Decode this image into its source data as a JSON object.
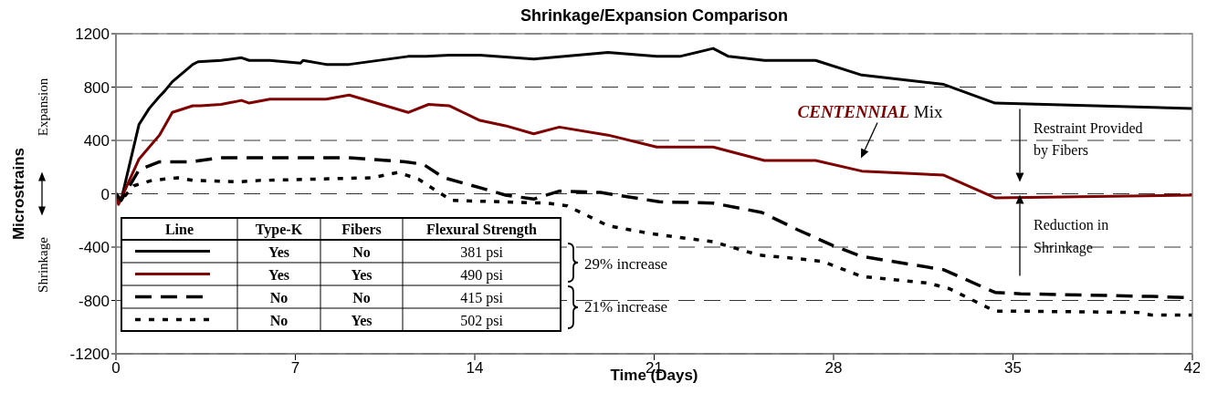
{
  "chart_data": {
    "type": "line",
    "title": "Shrinkage/Expansion Comparison",
    "xlabel": "Time (Days)",
    "ylabel": "Microstrains",
    "xlim": [
      0,
      42
    ],
    "xticks": [
      0,
      7,
      14,
      21,
      28,
      35,
      42
    ],
    "ylim": [
      -1200,
      1200
    ],
    "yticks": [
      -1200,
      -800,
      -400,
      0,
      400,
      800,
      1200
    ],
    "grid": "y",
    "series": [
      {
        "color": "#000000",
        "line_style": "solid",
        "x": [
          0,
          0.2,
          0.9,
          1.3,
          1.7,
          1.9,
          2.2,
          3,
          3.2,
          4.1,
          4.9,
          5.2,
          6,
          7.2,
          7.3,
          8.2,
          9.1,
          11.4,
          12.1,
          13,
          14.2,
          16.3,
          19.2,
          21.1,
          22,
          23.3,
          23.9,
          25.3,
          27.3,
          29.1,
          32.3,
          34.3,
          42
        ],
        "values": [
          0,
          -50,
          520,
          640,
          730,
          770,
          840,
          970,
          990,
          1000,
          1020,
          1000,
          1000,
          980,
          1000,
          970,
          970,
          1030,
          1030,
          1040,
          1040,
          1010,
          1060,
          1030,
          1030,
          1090,
          1030,
          1000,
          1000,
          890,
          820,
          680,
          640
        ]
      },
      {
        "color": "#7f0000",
        "line_style": "solid",
        "x": [
          0,
          0.1,
          0.9,
          1.7,
          2.2,
          3,
          3.3,
          4.1,
          4.9,
          5.2,
          6,
          8.2,
          9.1,
          11.4,
          12.2,
          13,
          14.2,
          15.2,
          16.3,
          17.3,
          19.2,
          21.1,
          23.3,
          25.3,
          27.3,
          29.1,
          32.3,
          34.3,
          42
        ],
        "values": [
          0,
          -80,
          260,
          440,
          610,
          660,
          660,
          670,
          700,
          680,
          710,
          710,
          740,
          610,
          670,
          660,
          550,
          510,
          450,
          500,
          440,
          350,
          350,
          250,
          250,
          170,
          140,
          -30,
          -10
        ]
      },
      {
        "color": "#000000",
        "line_style": "dashed",
        "x": [
          0,
          0.2,
          0.9,
          1.7,
          3,
          3.3,
          4.1,
          9.1,
          11.3,
          12,
          12.8,
          14.3,
          15.2,
          16.3,
          17.3,
          18.9,
          21.2,
          23.3,
          25.2,
          26.6,
          28,
          29.1,
          32.3,
          34.3,
          35.3,
          40.4,
          42
        ],
        "values": [
          0,
          -50,
          180,
          240,
          240,
          250,
          270,
          270,
          240,
          220,
          120,
          40,
          -10,
          -40,
          20,
          10,
          -60,
          -70,
          -140,
          -270,
          -390,
          -470,
          -570,
          -740,
          -750,
          -770,
          -780
        ]
      },
      {
        "color": "#000000",
        "line_style": "dotted",
        "x": [
          0,
          0.2,
          0.7,
          1.4,
          2.4,
          3,
          4.8,
          5.6,
          10,
          11,
          11.8,
          12.6,
          13.1,
          16.8,
          17.6,
          19.2,
          20.9,
          23.3,
          25.1,
          26.8,
          27.6,
          29.1,
          31.7,
          32.5,
          34.3,
          35.1,
          39.9,
          40.4,
          42
        ],
        "values": [
          0,
          -50,
          60,
          100,
          120,
          100,
          90,
          100,
          120,
          160,
          110,
          10,
          -50,
          -70,
          -90,
          -240,
          -300,
          -360,
          -460,
          -490,
          -510,
          -620,
          -670,
          -710,
          -880,
          -880,
          -890,
          -910,
          -910
        ]
      }
    ],
    "annotations": [
      "Expansion",
      "Shrinkage",
      "Line",
      "Type-K",
      "Fibers",
      "Flexural Strength",
      "Yes",
      "No",
      "381 psi",
      "Yes",
      "Yes",
      "490 psi",
      "No",
      "No",
      "415 psi",
      "No",
      "Yes",
      "502 psi",
      "29% increase",
      "21% increase",
      "CENTENNIAL Mix",
      "Restraint Provided by Fibers",
      "Reduction in Shrinkage"
    ]
  }
}
